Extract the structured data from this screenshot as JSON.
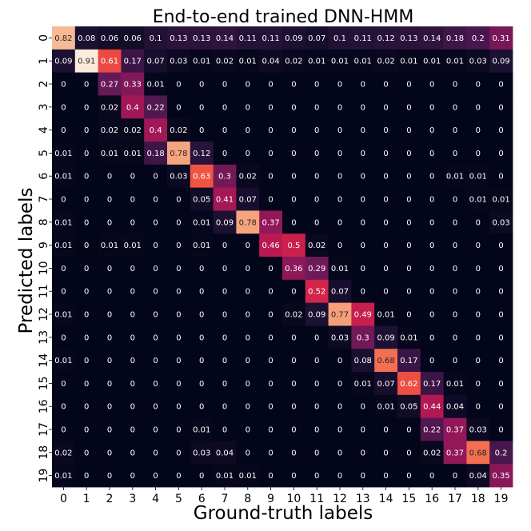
{
  "chart_data": {
    "type": "heatmap",
    "title": "End-to-end trained DNN-HMM",
    "xlabel": "Ground-truth labels",
    "ylabel": "Predicted labels",
    "x_categories": [
      "0",
      "1",
      "2",
      "3",
      "4",
      "5",
      "6",
      "7",
      "8",
      "9",
      "10",
      "11",
      "12",
      "13",
      "14",
      "15",
      "16",
      "17",
      "18",
      "19"
    ],
    "y_categories": [
      "0",
      "1",
      "2",
      "3",
      "4",
      "5",
      "6",
      "7",
      "8",
      "9",
      "10",
      "11",
      "12",
      "13",
      "14",
      "15",
      "16",
      "17",
      "18",
      "19"
    ],
    "vmin": 0,
    "vmax": 0.91,
    "colormap": "rocket",
    "values": [
      [
        0.82,
        0.08,
        0.06,
        0.06,
        0.1,
        0.13,
        0.13,
        0.14,
        0.11,
        0.11,
        0.09,
        0.07,
        0.1,
        0.11,
        0.12,
        0.13,
        0.14,
        0.18,
        0.2,
        0.31
      ],
      [
        0.09,
        0.91,
        0.61,
        0.17,
        0.07,
        0.03,
        0.01,
        0.02,
        0.01,
        0.04,
        0.02,
        0.01,
        0.01,
        0.01,
        0.02,
        0.01,
        0.01,
        0.01,
        0.03,
        0.09
      ],
      [
        0,
        0,
        0.27,
        0.33,
        0.01,
        0,
        0,
        0,
        0,
        0,
        0,
        0,
        0,
        0,
        0,
        0,
        0,
        0,
        0,
        0
      ],
      [
        0,
        0,
        0.02,
        0.4,
        0.22,
        0,
        0,
        0,
        0,
        0,
        0,
        0,
        0,
        0,
        0,
        0,
        0,
        0,
        0,
        0
      ],
      [
        0,
        0,
        0.02,
        0.02,
        0.4,
        0.02,
        0,
        0,
        0,
        0,
        0,
        0,
        0,
        0,
        0,
        0,
        0,
        0,
        0,
        0
      ],
      [
        0.01,
        0,
        0.01,
        0.01,
        0.18,
        0.78,
        0.12,
        0,
        0,
        0,
        0,
        0,
        0,
        0,
        0,
        0,
        0,
        0,
        0,
        0
      ],
      [
        0.01,
        0,
        0,
        0,
        0,
        0.03,
        0.63,
        0.3,
        0.02,
        0,
        0,
        0,
        0,
        0,
        0,
        0,
        0,
        0.01,
        0.01,
        0
      ],
      [
        0,
        0,
        0,
        0,
        0,
        0,
        0.05,
        0.41,
        0.07,
        0,
        0,
        0,
        0,
        0,
        0,
        0,
        0,
        0,
        0.01,
        0.01
      ],
      [
        0.01,
        0,
        0,
        0,
        0,
        0,
        0.01,
        0.09,
        0.78,
        0.37,
        0,
        0,
        0,
        0,
        0,
        0,
        0,
        0,
        0,
        0.03
      ],
      [
        0.01,
        0,
        0.01,
        0.01,
        0,
        0,
        0.01,
        0,
        0,
        0.46,
        0.5,
        0.02,
        0,
        0,
        0,
        0,
        0,
        0,
        0,
        0
      ],
      [
        0,
        0,
        0,
        0,
        0,
        0,
        0,
        0,
        0,
        0,
        0.36,
        0.29,
        0.01,
        0,
        0,
        0,
        0,
        0,
        0,
        0
      ],
      [
        0,
        0,
        0,
        0,
        0,
        0,
        0,
        0,
        0,
        0,
        0,
        0.52,
        0.07,
        0,
        0,
        0,
        0,
        0,
        0,
        0
      ],
      [
        0.01,
        0,
        0,
        0,
        0,
        0,
        0,
        0,
        0,
        0,
        0.02,
        0.09,
        0.77,
        0.49,
        0.01,
        0,
        0,
        0,
        0,
        0
      ],
      [
        0,
        0,
        0,
        0,
        0,
        0,
        0,
        0,
        0,
        0,
        0,
        0,
        0.03,
        0.3,
        0.09,
        0.01,
        0,
        0,
        0,
        0
      ],
      [
        0.01,
        0,
        0,
        0,
        0,
        0,
        0,
        0,
        0,
        0,
        0,
        0,
        0,
        0.08,
        0.68,
        0.17,
        0,
        0,
        0,
        0
      ],
      [
        0,
        0,
        0,
        0,
        0,
        0,
        0,
        0,
        0,
        0,
        0,
        0,
        0,
        0.01,
        0.07,
        0.62,
        0.17,
        0.01,
        0,
        0
      ],
      [
        0,
        0,
        0,
        0,
        0,
        0,
        0,
        0,
        0,
        0,
        0,
        0,
        0,
        0,
        0.01,
        0.05,
        0.44,
        0.04,
        0,
        0
      ],
      [
        0,
        0,
        0,
        0,
        0,
        0,
        0.01,
        0,
        0,
        0,
        0,
        0,
        0,
        0,
        0,
        0,
        0.22,
        0.37,
        0.03,
        0
      ],
      [
        0.02,
        0,
        0,
        0,
        0,
        0,
        0.03,
        0.04,
        0,
        0,
        0,
        0,
        0,
        0,
        0,
        0,
        0.02,
        0.37,
        0.68,
        0.2
      ],
      [
        0.01,
        0,
        0,
        0,
        0,
        0,
        0,
        0.01,
        0.01,
        0,
        0,
        0,
        0,
        0,
        0,
        0,
        0,
        0,
        0.04,
        0.35
      ]
    ]
  }
}
